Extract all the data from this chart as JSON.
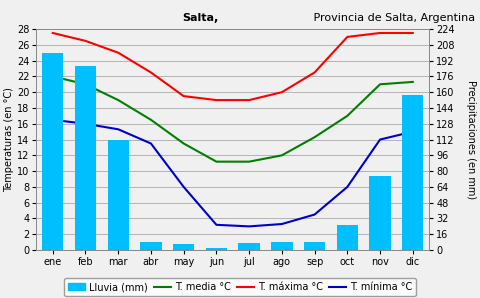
{
  "title_bold": "Salta,",
  "title_rest": " Provincia de Salta, Argentina",
  "months": [
    "ene",
    "feb",
    "mar",
    "abr",
    "may",
    "jun",
    "jul",
    "ago",
    "sep",
    "oct",
    "nov",
    "dic"
  ],
  "lluvia_mm": [
    200,
    187,
    112,
    8,
    6,
    2,
    7,
    8,
    8,
    25,
    75,
    157
  ],
  "t_media": [
    22,
    21,
    19,
    16.5,
    13.5,
    11.2,
    11.2,
    12,
    14.3,
    17,
    21,
    21.3
  ],
  "t_maxima": [
    27.5,
    26.5,
    25,
    22.5,
    19.5,
    19,
    19,
    20,
    22.5,
    27,
    27.5,
    27.5
  ],
  "t_minima": [
    16.5,
    16,
    15.3,
    13.5,
    8,
    3.2,
    3,
    3.3,
    4.5,
    8,
    14,
    15
  ],
  "bar_color": "#00BFFF",
  "line_media_color": "#008000",
  "line_maxima_color": "#FF0000",
  "line_minima_color": "#0000CD",
  "temp_ylim": [
    0,
    28
  ],
  "temp_yticks": [
    0,
    2,
    4,
    6,
    8,
    10,
    12,
    14,
    16,
    18,
    20,
    22,
    24,
    26,
    28
  ],
  "precip_ylim": [
    0,
    224
  ],
  "precip_yticks": [
    0,
    16,
    32,
    48,
    64,
    80,
    96,
    112,
    128,
    144,
    160,
    176,
    192,
    208,
    224
  ],
  "ylabel_left": "Temperaturas (en °C)",
  "ylabel_right": "Precipitaciones (en mm)",
  "legend_lluvia": "Lluvia (mm)",
  "legend_media": "T. media °C",
  "legend_maxima": "T. máxima °C",
  "legend_minima": "T. mínima °C",
  "bg_color": "#F0F0F0",
  "grid_color": "#AAAAAA",
  "title_fontsize": 8,
  "axis_fontsize": 7,
  "legend_fontsize": 7,
  "line_width": 1.5
}
